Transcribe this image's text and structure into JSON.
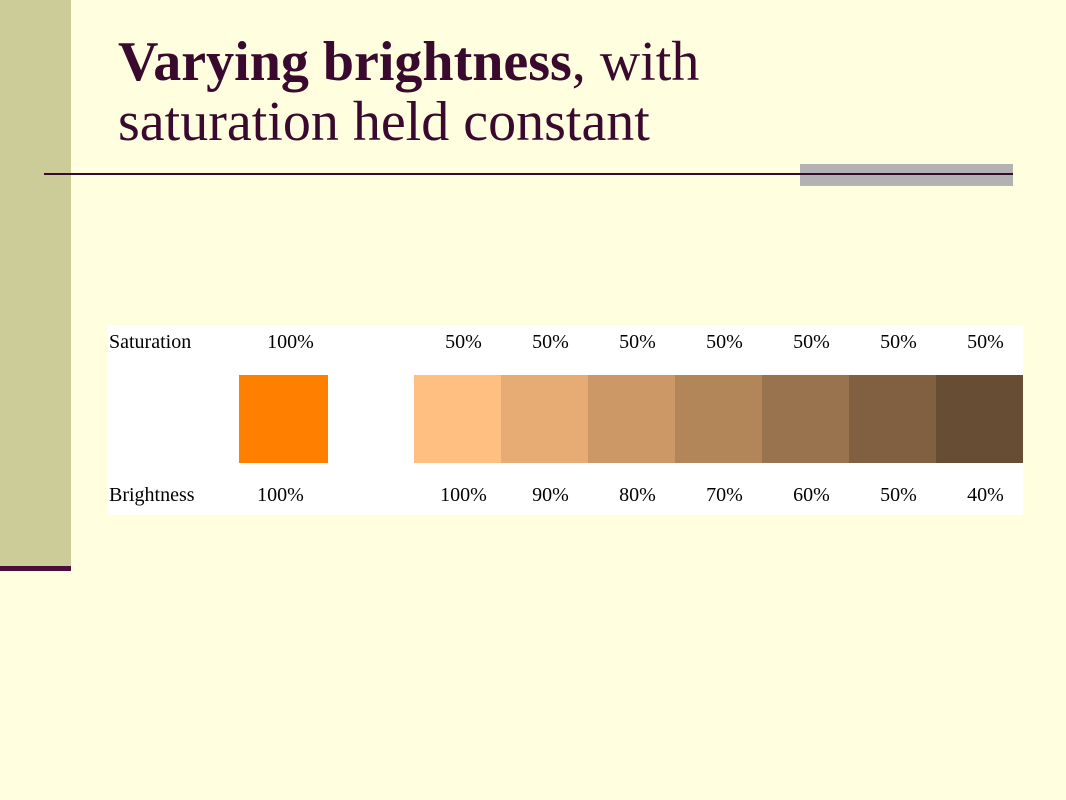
{
  "slide": {
    "title_bold": "Varying brightness",
    "title_rest": ", with",
    "title_line2": "saturation held constant"
  },
  "table": {
    "saturation_label": "Saturation",
    "brightness_label": "Brightness",
    "reference": {
      "saturation": "100%",
      "brightness": "100%",
      "color": "#ff7f00"
    },
    "swatches": [
      {
        "saturation": "50%",
        "brightness": "100%",
        "color": "#ffbf80"
      },
      {
        "saturation": "50%",
        "brightness": "90%",
        "color": "#e6ac73"
      },
      {
        "saturation": "50%",
        "brightness": "80%",
        "color": "#cc9966"
      },
      {
        "saturation": "50%",
        "brightness": "70%",
        "color": "#b3865a"
      },
      {
        "saturation": "50%",
        "brightness": "60%",
        "color": "#99734d"
      },
      {
        "saturation": "50%",
        "brightness": "50%",
        "color": "#806040"
      },
      {
        "saturation": "50%",
        "brightness": "40%",
        "color": "#664d33"
      }
    ]
  }
}
